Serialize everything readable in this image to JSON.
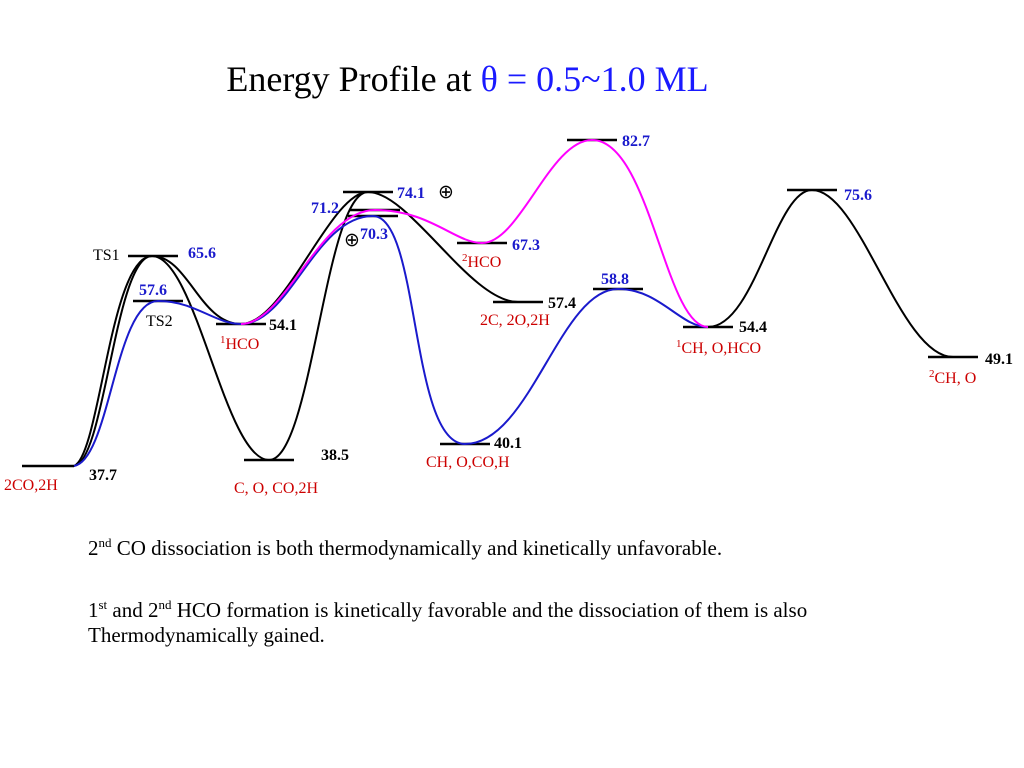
{
  "title": {
    "prefix": "Energy Profile at ",
    "accent": "θ = 0.5~1.0 ML"
  },
  "levels": {
    "start": "37.7",
    "ts1": "65.6",
    "ts2": "57.6",
    "i_38": "38.5",
    "i_54_1": "54.1",
    "i_74_1": "74.1",
    "i_71_2": "71.2",
    "i_70_3": "70.3",
    "i_67_3": "67.3",
    "i_57_4": "57.4",
    "i_40_1": "40.1",
    "i_58_8": "58.8",
    "i_82_7": "82.7",
    "i_54_4": "54.4",
    "i_75_6": "75.6",
    "i_49_1": "49.1"
  },
  "labels": {
    "ts1": "TS1",
    "ts2": "TS2",
    "start": "2CO,2H",
    "c_o_co_2h": "C, O, CO,2H",
    "hco1_sup": "1",
    "hco1": "HCO",
    "hco2_sup": "2",
    "hco2": "HCO",
    "c2_o2_2h": "2C, 2O,2H",
    "ch_o_co_h": "CH, O,CO,H",
    "ch_o_hco_sup": "1",
    "ch_o_hco": "CH, O,HCO",
    "ch_o_sup": "2",
    "ch_o": "CH, O",
    "plus_symbol": "⊕"
  },
  "notes": {
    "line1_num": "2",
    "line1_sup": "nd",
    "line1_text": " CO dissociation is both thermodynamically and kinetically unfavorable.",
    "line2_num1": "1",
    "line2_sup1": "st",
    "line2_and": " and 2",
    "line2_sup2": "nd",
    "line2_text": " HCO formation is kinetically favorable and the dissociation of them is also",
    "line3_text": "Thermodynamically  gained."
  },
  "colors": {
    "black": "#000000",
    "blue": "#1a1acc",
    "magenta": "#ff00ff",
    "red": "#cc0000",
    "title_accent": "#1a1aff"
  }
}
